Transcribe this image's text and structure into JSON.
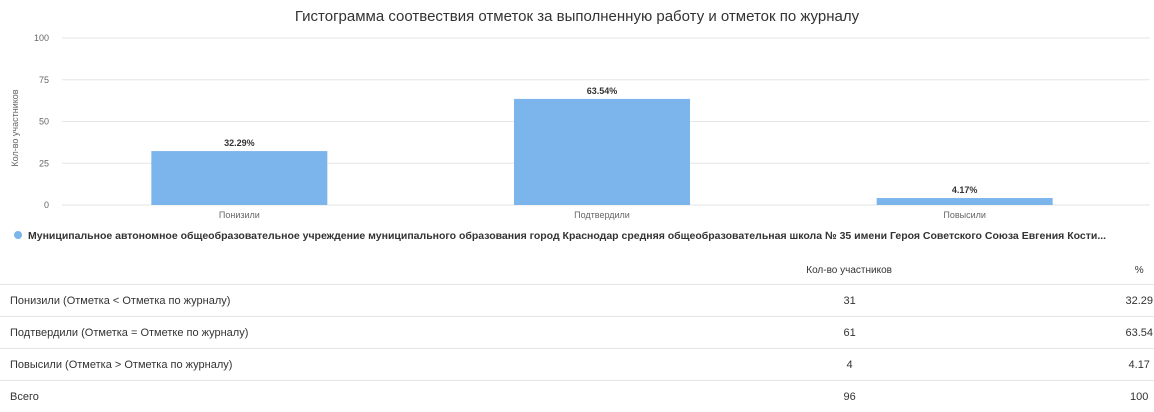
{
  "colors": {
    "bar": "#7cb5ec",
    "grid": "#e6e6e6",
    "text": "#333333",
    "axis": "#666666"
  },
  "chart_data": {
    "type": "bar",
    "title": "Гистограмма соотвествия отметок за выполненную работу и отметок по журналу",
    "ylabel": "Кол-во участников",
    "xlabel": "",
    "ylim": [
      0,
      100
    ],
    "yticks": [
      0,
      25,
      50,
      75,
      100
    ],
    "categories": [
      "Понизили",
      "Подтвердили",
      "Повысили"
    ],
    "series": [
      {
        "name": "Муниципальное автономное общеобразовательное учреждение муниципального образования город Краснодар средняя общеобразовательная школа № 35 имени Героя Советского Союза Евгения Кости...",
        "values": [
          32.29,
          63.54,
          4.17
        ],
        "labels": [
          "32.29%",
          "63.54%",
          "4.17%"
        ]
      }
    ],
    "grid": true,
    "legend": "bottom-left"
  },
  "table": {
    "headers": [
      "",
      "Кол-во участников",
      "%"
    ],
    "rows": [
      {
        "label": "Понизили (Отметка < Отметка по журналу)",
        "count": "31",
        "percent": "32.29"
      },
      {
        "label": "Подтвердили (Отметка = Отметке по журналу)",
        "count": "61",
        "percent": "63.54"
      },
      {
        "label": "Повысили (Отметка > Отметка по журналу)",
        "count": "4",
        "percent": "4.17"
      },
      {
        "label": "Всего",
        "count": "96",
        "percent": "100"
      }
    ]
  }
}
